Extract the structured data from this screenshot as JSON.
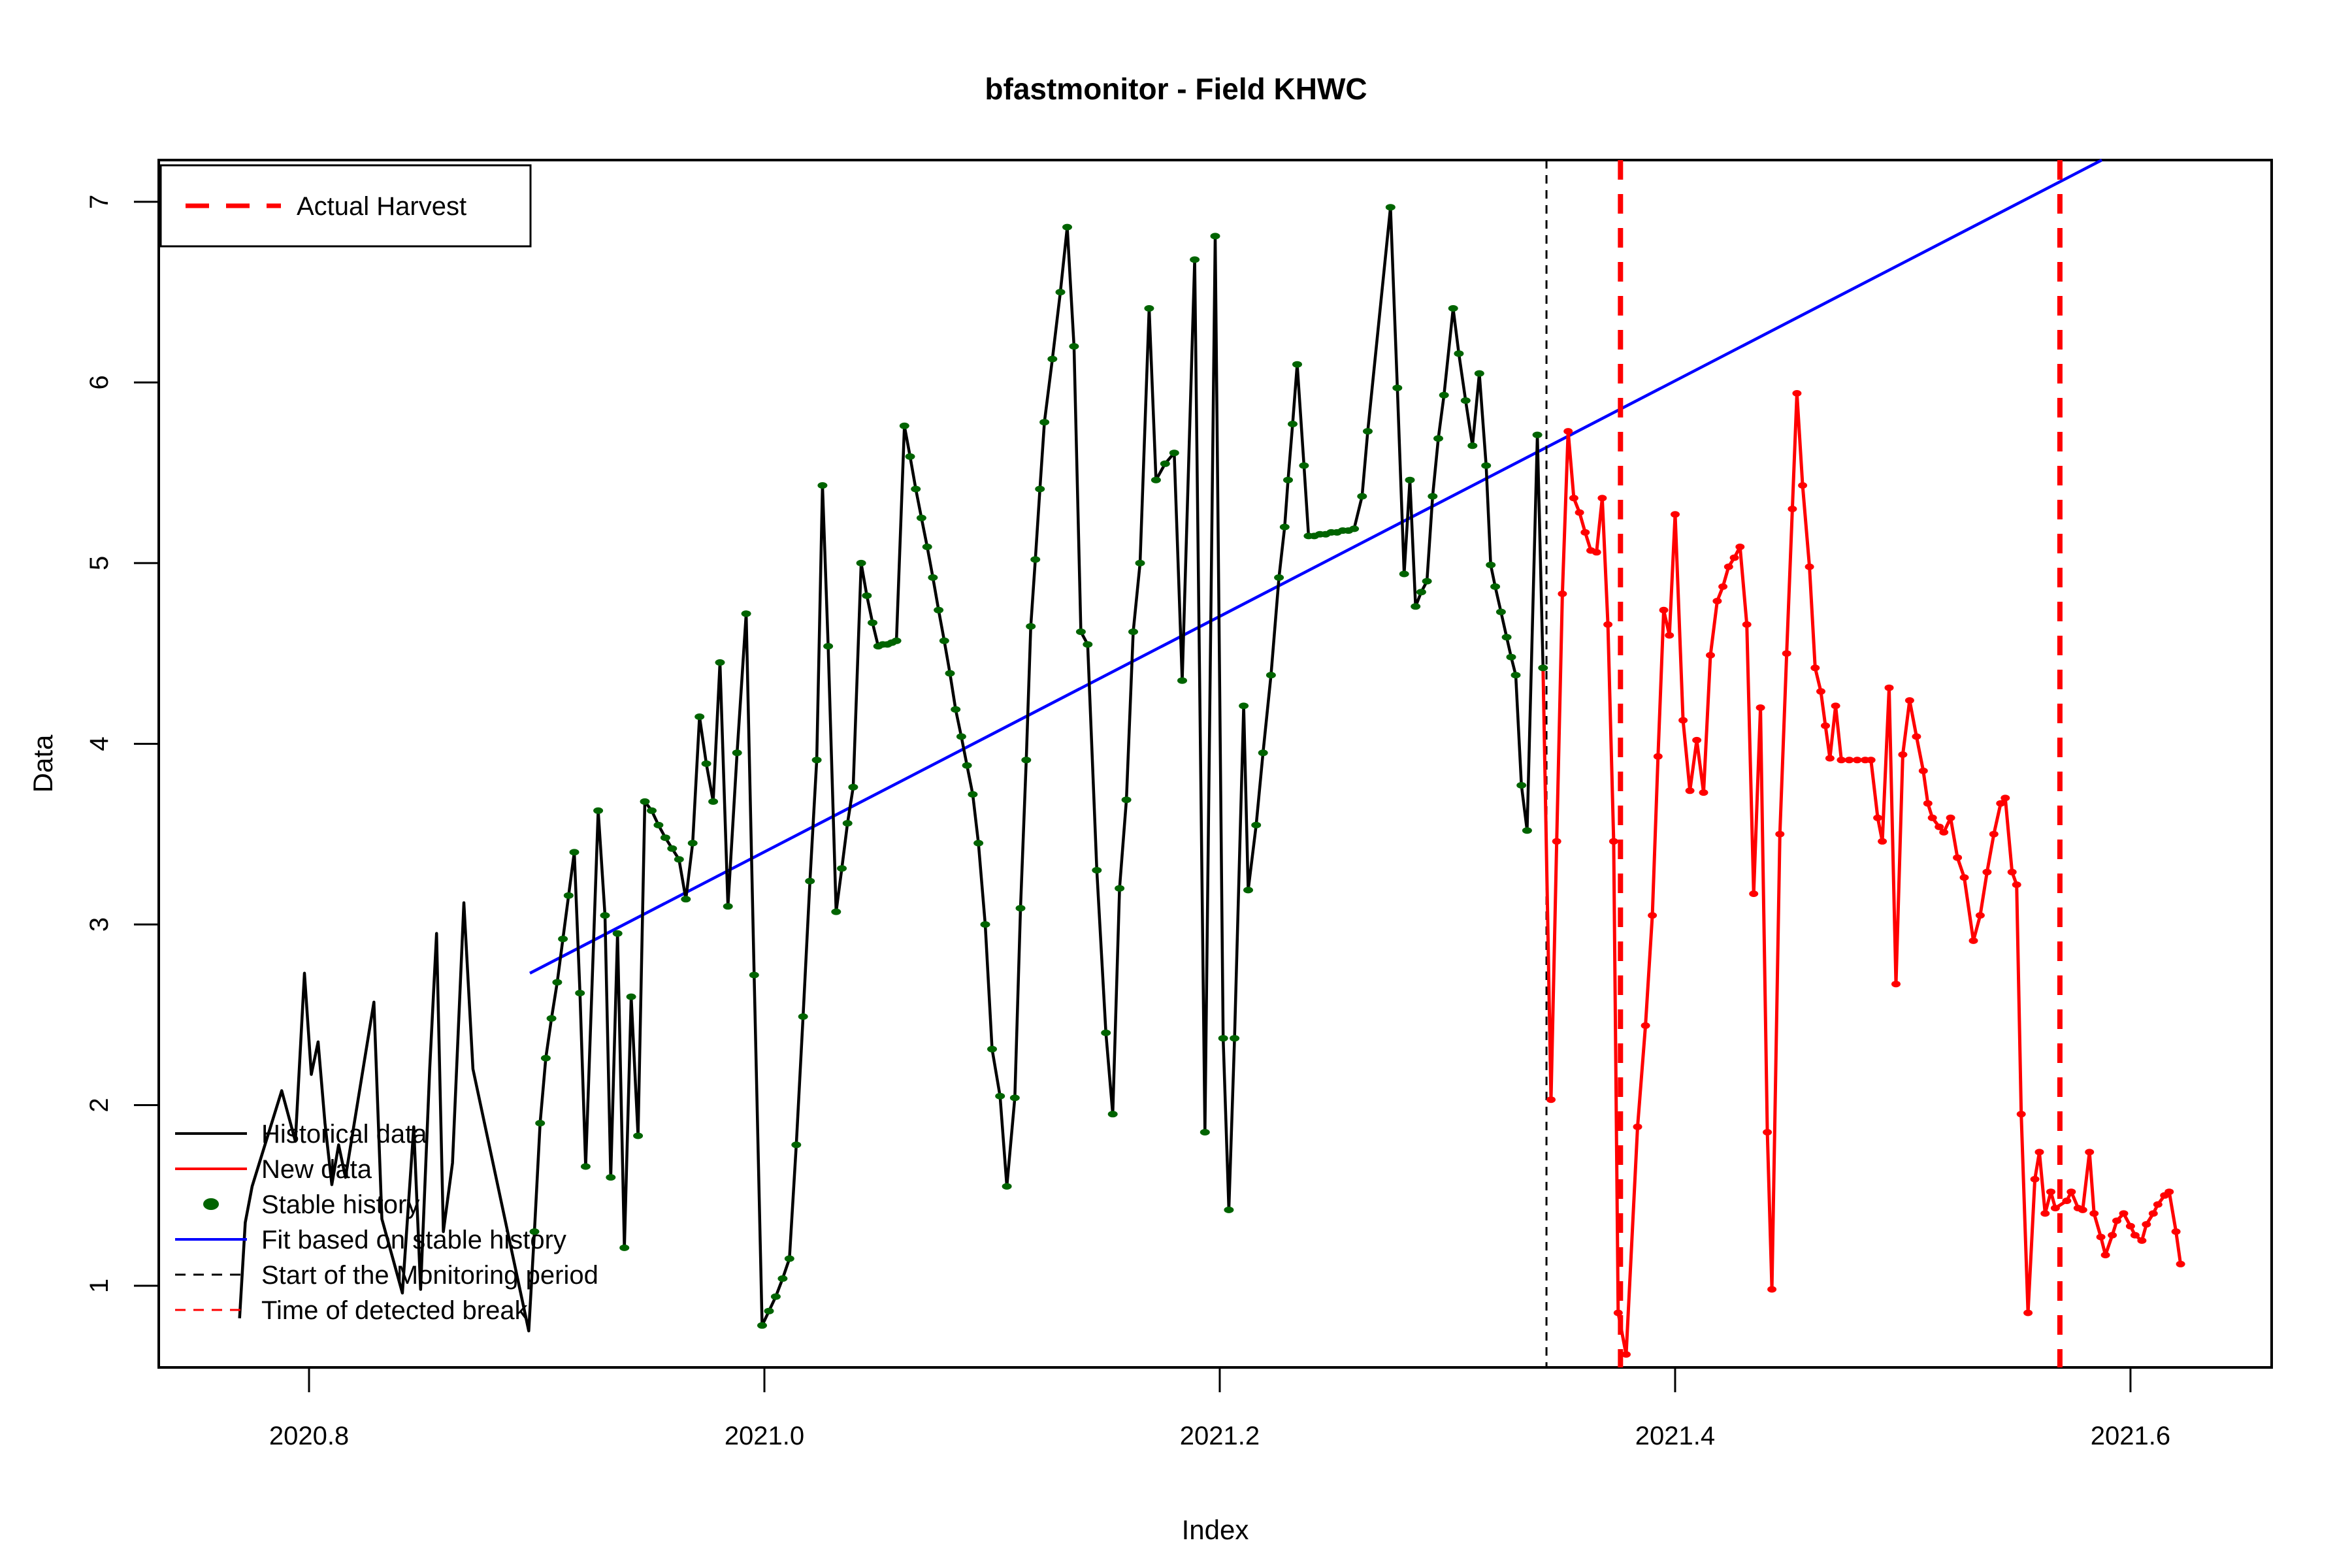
{
  "chart_data": {
    "type": "line",
    "title": "bfastmonitor - Field KHWC",
    "xlabel": "Index",
    "ylabel": "Data",
    "xlim": [
      2020.734,
      2021.662
    ],
    "ylim": [
      0.548,
      7.231
    ],
    "x_ticks": [
      2020.8,
      2021.0,
      2021.2,
      2021.4,
      2021.6
    ],
    "x_tick_labels": [
      "2020.8",
      "2021.0",
      "2021.2",
      "2021.4",
      "2021.6"
    ],
    "y_ticks": [
      1,
      2,
      3,
      4,
      5,
      6,
      7
    ],
    "y_tick_labels": [
      "1",
      "2",
      "3",
      "4",
      "5",
      "6",
      "7"
    ],
    "grid": false,
    "legend_position": {
      "top_left_box": "Actual Harvest",
      "bottom_left_list": "series key"
    },
    "colors": {
      "historical": "#000000",
      "new_data": "#ff0000",
      "stable_history": "#006400",
      "fit": "#0000ff",
      "monitor_start": "#000000",
      "detected_break": "#ff0000",
      "actual_harvest": "#ff0000",
      "background": "#ffffff"
    },
    "legend_top": [
      {
        "label": "Actual Harvest",
        "style": "red-thick-dashed-line"
      }
    ],
    "legend_bottom": [
      {
        "label": "Historical data",
        "style": "black-solid-line"
      },
      {
        "label": "New data",
        "style": "red-solid-line"
      },
      {
        "label": "Stable history",
        "style": "green-dot"
      },
      {
        "label": "Fit based on stable history",
        "style": "blue-solid-line"
      },
      {
        "label": "Start of the Monitoring period",
        "style": "black-dashed-line"
      },
      {
        "label": "Time of detected break",
        "style": "red-dashed-line"
      }
    ],
    "vlines": {
      "monitor_start": 2021.3435,
      "detected_break": 2021.376,
      "actual_harvest": 2021.569
    },
    "fit_line": {
      "t": [
        2020.897,
        2021.5874
      ],
      "v": [
        2.73,
        7.231
      ]
    },
    "series": {
      "historical_pre": [
        [
          2020.7695,
          0.82
        ],
        [
          2020.772,
          1.35
        ],
        [
          2020.775,
          1.55
        ],
        [
          2020.788,
          2.08
        ],
        [
          2020.794,
          1.8
        ],
        [
          2020.798,
          2.73
        ],
        [
          2020.801,
          2.17
        ],
        [
          2020.804,
          2.35
        ],
        [
          2020.807,
          1.9
        ],
        [
          2020.81,
          1.56
        ],
        [
          2020.813,
          1.78
        ],
        [
          2020.816,
          1.6
        ],
        [
          2020.8285,
          2.57
        ],
        [
          2020.832,
          1.37
        ],
        [
          2020.841,
          0.96
        ],
        [
          2020.846,
          1.88
        ],
        [
          2020.849,
          0.98
        ],
        [
          2020.853,
          2.2
        ],
        [
          2020.856,
          2.95
        ],
        [
          2020.859,
          1.3
        ],
        [
          2020.863,
          1.68
        ],
        [
          2020.868,
          3.12
        ],
        [
          2020.872,
          2.2
        ],
        [
          2020.8965,
          0.75
        ]
      ],
      "stable_history": [
        [
          2020.899,
          1.3
        ],
        [
          2020.9015,
          1.9
        ],
        [
          2020.904,
          2.26
        ],
        [
          2020.9065,
          2.48
        ],
        [
          2020.909,
          2.68
        ],
        [
          2020.9115,
          2.92
        ],
        [
          2020.914,
          3.16
        ],
        [
          2020.9165,
          3.4
        ],
        [
          2020.919,
          2.62
        ],
        [
          2020.9215,
          1.66
        ],
        [
          2020.927,
          3.63
        ],
        [
          2020.93,
          3.05
        ],
        [
          2020.9325,
          1.6
        ],
        [
          2020.9355,
          2.95
        ],
        [
          2020.9385,
          1.21
        ],
        [
          2020.9415,
          2.6
        ],
        [
          2020.9445,
          1.83
        ],
        [
          2020.9475,
          3.68
        ],
        [
          2020.9505,
          3.63
        ],
        [
          2020.9535,
          3.55
        ],
        [
          2020.9565,
          3.48
        ],
        [
          2020.9595,
          3.42
        ],
        [
          2020.9625,
          3.36
        ],
        [
          2020.9655,
          3.14
        ],
        [
          2020.9685,
          3.45
        ],
        [
          2020.9715,
          4.15
        ],
        [
          2020.9745,
          3.89
        ],
        [
          2020.9775,
          3.68
        ],
        [
          2020.9805,
          4.45
        ],
        [
          2020.984,
          3.1
        ],
        [
          2020.988,
          3.95
        ],
        [
          2020.992,
          4.72
        ],
        [
          2020.9955,
          2.72
        ],
        [
          2020.999,
          0.78
        ],
        [
          2021.002,
          0.86
        ],
        [
          2021.005,
          0.94
        ],
        [
          2021.008,
          1.04
        ],
        [
          2021.011,
          1.15
        ],
        [
          2021.014,
          1.78
        ],
        [
          2021.017,
          2.49
        ],
        [
          2021.02,
          3.24
        ],
        [
          2021.023,
          3.91
        ],
        [
          2021.0255,
          5.43
        ],
        [
          2021.028,
          4.54
        ],
        [
          2021.0315,
          3.07
        ],
        [
          2021.034,
          3.31
        ],
        [
          2021.0365,
          3.56
        ],
        [
          2021.039,
          3.76
        ],
        [
          2021.0425,
          5.0
        ],
        [
          2021.045,
          4.82
        ],
        [
          2021.0475,
          4.67
        ],
        [
          2021.05,
          4.54
        ],
        [
          2021.052,
          4.55
        ],
        [
          2021.054,
          4.55
        ],
        [
          2021.056,
          4.56
        ],
        [
          2021.058,
          4.57
        ],
        [
          2021.0615,
          5.76
        ],
        [
          2021.064,
          5.59
        ],
        [
          2021.0665,
          5.41
        ],
        [
          2021.069,
          5.25
        ],
        [
          2021.0715,
          5.09
        ],
        [
          2021.074,
          4.92
        ],
        [
          2021.0765,
          4.74
        ],
        [
          2021.079,
          4.57
        ],
        [
          2021.0815,
          4.39
        ],
        [
          2021.084,
          4.19
        ],
        [
          2021.0865,
          4.04
        ],
        [
          2021.089,
          3.88
        ],
        [
          2021.0915,
          3.72
        ],
        [
          2021.094,
          3.45
        ],
        [
          2021.097,
          3.0
        ],
        [
          2021.1,
          2.31
        ],
        [
          2021.1035,
          2.05
        ],
        [
          2021.1065,
          1.55
        ],
        [
          2021.11,
          2.04
        ],
        [
          2021.1125,
          3.09
        ],
        [
          2021.115,
          3.91
        ],
        [
          2021.117,
          4.65
        ],
        [
          2021.119,
          5.02
        ],
        [
          2021.121,
          5.41
        ],
        [
          2021.123,
          5.78
        ],
        [
          2021.1265,
          6.13
        ],
        [
          2021.13,
          6.5
        ],
        [
          2021.133,
          6.86
        ],
        [
          2021.136,
          6.2
        ],
        [
          2021.139,
          4.62
        ],
        [
          2021.142,
          4.55
        ],
        [
          2021.146,
          3.3
        ],
        [
          2021.15,
          2.4
        ],
        [
          2021.153,
          1.95
        ],
        [
          2021.156,
          3.2
        ],
        [
          2021.159,
          3.69
        ],
        [
          2021.162,
          4.62
        ],
        [
          2021.165,
          5.0
        ],
        [
          2021.169,
          6.41
        ],
        [
          2021.172,
          5.46
        ],
        [
          2021.176,
          5.55
        ],
        [
          2021.18,
          5.61
        ],
        [
          2021.1835,
          4.35
        ],
        [
          2021.189,
          6.68
        ],
        [
          2021.1935,
          1.85
        ],
        [
          2021.198,
          6.81
        ],
        [
          2021.2015,
          2.37
        ],
        [
          2021.204,
          1.42
        ],
        [
          2021.2065,
          2.37
        ],
        [
          2021.2105,
          4.21
        ],
        [
          2021.2125,
          3.19
        ],
        [
          2021.216,
          3.55
        ],
        [
          2021.219,
          3.95
        ],
        [
          2021.2225,
          4.38
        ],
        [
          2021.226,
          4.92
        ],
        [
          2021.2285,
          5.2
        ],
        [
          2021.23,
          5.46
        ],
        [
          2021.232,
          5.77
        ],
        [
          2021.234,
          6.1
        ],
        [
          2021.237,
          5.54
        ],
        [
          2021.239,
          5.15
        ],
        [
          2021.2415,
          5.15
        ],
        [
          2021.244,
          5.16
        ],
        [
          2021.2465,
          5.16
        ],
        [
          2021.249,
          5.17
        ],
        [
          2021.2515,
          5.17
        ],
        [
          2021.254,
          5.18
        ],
        [
          2021.2565,
          5.18
        ],
        [
          2021.259,
          5.19
        ],
        [
          2021.2625,
          5.37
        ],
        [
          2021.265,
          5.73
        ],
        [
          2021.275,
          6.97
        ],
        [
          2021.278,
          5.97
        ],
        [
          2021.281,
          4.94
        ],
        [
          2021.2835,
          5.46
        ],
        [
          2021.286,
          4.76
        ],
        [
          2021.2885,
          4.84
        ],
        [
          2021.291,
          4.9
        ],
        [
          2021.2935,
          5.37
        ],
        [
          2021.296,
          5.69
        ],
        [
          2021.2985,
          5.93
        ],
        [
          2021.3025,
          6.41
        ],
        [
          2021.305,
          6.16
        ],
        [
          2021.308,
          5.9
        ],
        [
          2021.311,
          5.65
        ],
        [
          2021.314,
          6.05
        ],
        [
          2021.317,
          5.54
        ],
        [
          2021.319,
          4.99
        ],
        [
          2021.321,
          4.87
        ],
        [
          2021.3235,
          4.73
        ],
        [
          2021.326,
          4.59
        ],
        [
          2021.328,
          4.48
        ],
        [
          2021.33,
          4.38
        ],
        [
          2021.3325,
          3.77
        ],
        [
          2021.335,
          3.52
        ],
        [
          2021.3395,
          5.71
        ],
        [
          2021.342,
          4.42
        ]
      ],
      "new_data": [
        [
          2021.342,
          4.42
        ],
        [
          2021.3455,
          2.03
        ],
        [
          2021.348,
          3.46
        ],
        [
          2021.3505,
          4.83
        ],
        [
          2021.353,
          5.73
        ],
        [
          2021.3555,
          5.36
        ],
        [
          2021.358,
          5.28
        ],
        [
          2021.3605,
          5.17
        ],
        [
          2021.363,
          5.07
        ],
        [
          2021.3655,
          5.06
        ],
        [
          2021.368,
          5.36
        ],
        [
          2021.3705,
          4.66
        ],
        [
          2021.373,
          3.46
        ],
        [
          2021.375,
          0.85
        ],
        [
          2021.3785,
          0.62
        ],
        [
          2021.3835,
          1.88
        ],
        [
          2021.387,
          2.44
        ],
        [
          2021.39,
          3.05
        ],
        [
          2021.3925,
          3.93
        ],
        [
          2021.395,
          4.74
        ],
        [
          2021.3975,
          4.6
        ],
        [
          2021.4,
          5.27
        ],
        [
          2021.4035,
          4.13
        ],
        [
          2021.4065,
          3.74
        ],
        [
          2021.4095,
          4.02
        ],
        [
          2021.4125,
          3.73
        ],
        [
          2021.4155,
          4.49
        ],
        [
          2021.4185,
          4.79
        ],
        [
          2021.421,
          4.87
        ],
        [
          2021.4235,
          4.98
        ],
        [
          2021.426,
          5.03
        ],
        [
          2021.4285,
          5.09
        ],
        [
          2021.4315,
          4.66
        ],
        [
          2021.4345,
          3.17
        ],
        [
          2021.4375,
          4.2
        ],
        [
          2021.4405,
          1.85
        ],
        [
          2021.4425,
          0.98
        ],
        [
          2021.446,
          3.5
        ],
        [
          2021.449,
          4.5
        ],
        [
          2021.4515,
          5.3
        ],
        [
          2021.4535,
          5.94
        ],
        [
          2021.456,
          5.43
        ],
        [
          2021.459,
          4.98
        ],
        [
          2021.4615,
          4.42
        ],
        [
          2021.464,
          4.29
        ],
        [
          2021.466,
          4.1
        ],
        [
          2021.468,
          3.92
        ],
        [
          2021.4705,
          4.21
        ],
        [
          2021.473,
          3.91
        ],
        [
          2021.4765,
          3.91
        ],
        [
          2021.48,
          3.91
        ],
        [
          2021.4835,
          3.91
        ],
        [
          2021.486,
          3.91
        ],
        [
          2021.489,
          3.59
        ],
        [
          2021.491,
          3.46
        ],
        [
          2021.494,
          4.31
        ],
        [
          2021.497,
          2.67
        ],
        [
          2021.5,
          3.94
        ],
        [
          2021.503,
          4.24
        ],
        [
          2021.506,
          4.04
        ],
        [
          2021.509,
          3.85
        ],
        [
          2021.511,
          3.67
        ],
        [
          2021.513,
          3.59
        ],
        [
          2021.516,
          3.54
        ],
        [
          2021.518,
          3.51
        ],
        [
          2021.521,
          3.59
        ],
        [
          2021.524,
          3.37
        ],
        [
          2021.527,
          3.26
        ],
        [
          2021.531,
          2.91
        ],
        [
          2021.534,
          3.05
        ],
        [
          2021.537,
          3.29
        ],
        [
          2021.54,
          3.5
        ],
        [
          2021.543,
          3.67
        ],
        [
          2021.545,
          3.7
        ],
        [
          2021.548,
          3.29
        ],
        [
          2021.55,
          3.22
        ],
        [
          2021.552,
          1.95
        ],
        [
          2021.555,
          0.85
        ],
        [
          2021.558,
          1.59
        ],
        [
          2021.56,
          1.74
        ],
        [
          2021.5625,
          1.4
        ],
        [
          2021.565,
          1.52
        ],
        [
          2021.567,
          1.43
        ],
        [
          2021.572,
          1.47
        ],
        [
          2021.574,
          1.52
        ],
        [
          2021.577,
          1.43
        ],
        [
          2021.579,
          1.42
        ],
        [
          2021.582,
          1.74
        ],
        [
          2021.584,
          1.4
        ],
        [
          2021.587,
          1.27
        ],
        [
          2021.589,
          1.17
        ],
        [
          2021.592,
          1.28
        ],
        [
          2021.594,
          1.36
        ],
        [
          2021.597,
          1.4
        ],
        [
          2021.6,
          1.33
        ],
        [
          2021.602,
          1.28
        ],
        [
          2021.605,
          1.25
        ],
        [
          2021.607,
          1.34
        ],
        [
          2021.61,
          1.4
        ],
        [
          2021.612,
          1.45
        ],
        [
          2021.615,
          1.5
        ],
        [
          2021.617,
          1.52
        ],
        [
          2021.62,
          1.3
        ],
        [
          2021.622,
          1.12
        ]
      ]
    }
  }
}
